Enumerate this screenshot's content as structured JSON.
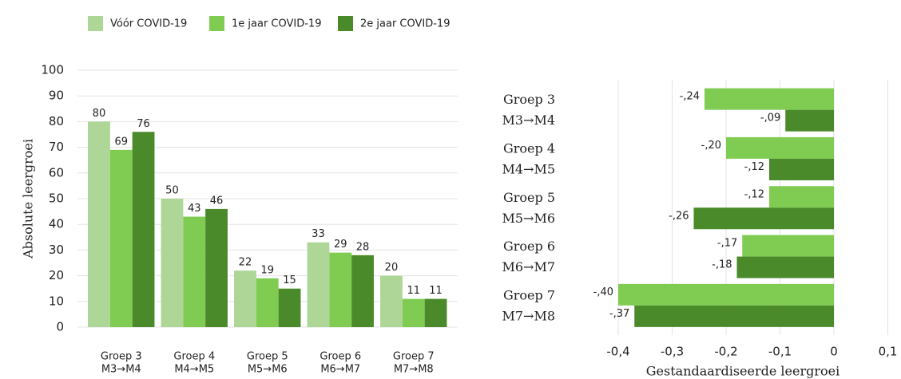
{
  "chart_data": [
    {
      "type": "bar",
      "categories": [
        [
          "Groep 3",
          "M3→M4"
        ],
        [
          "Groep 4",
          "M4→M5"
        ],
        [
          "Groep 5",
          "M5→M6"
        ],
        [
          "Groep 6",
          "M6→M7"
        ],
        [
          "Groep 7",
          "M7→M8"
        ]
      ],
      "series": [
        {
          "name": "Vóór COVID-19",
          "color": "#add697",
          "values": [
            80,
            50,
            22,
            33,
            20
          ]
        },
        {
          "name": "1e jaar COVID-19",
          "color": "#80cc53",
          "values": [
            69,
            43,
            19,
            29,
            11
          ]
        },
        {
          "name": "2e jaar COVID-19",
          "color": "#4a8a2a",
          "values": [
            76,
            46,
            15,
            28,
            11
          ]
        }
      ],
      "y_label": "Absolute leergroei",
      "ylim": [
        0,
        100
      ],
      "yticks": [
        0,
        10,
        20,
        30,
        40,
        50,
        60,
        70,
        80,
        90,
        100
      ],
      "grid": true
    },
    {
      "type": "hbar",
      "categories": [
        [
          "Groep 3",
          "M3→M4"
        ],
        [
          "Groep 4",
          "M4→M5"
        ],
        [
          "Groep 5",
          "M5→M6"
        ],
        [
          "Groep 6",
          "M6→M7"
        ],
        [
          "Groep 7",
          "M7→M8"
        ]
      ],
      "series": [
        {
          "color": "#80cc53",
          "values": [
            -0.24,
            -0.2,
            -0.12,
            -0.17,
            -0.4
          ],
          "value_labels": [
            "-,24",
            "-,20",
            "-,12",
            "-,17",
            "-,40"
          ]
        },
        {
          "color": "#4a8a2a",
          "values": [
            -0.09,
            -0.12,
            -0.26,
            -0.18,
            -0.37
          ],
          "value_labels": [
            "-,09",
            "-,12",
            "-,26",
            "-,18",
            "-,37"
          ]
        }
      ],
      "x_label": "Gestandaardiseerde leergroei",
      "xlim": [
        -0.45,
        0.12
      ],
      "xticks": [
        {
          "value": -0.4,
          "label": "-0,4"
        },
        {
          "value": -0.3,
          "label": "-0,3"
        },
        {
          "value": -0.2,
          "label": "-0,2"
        },
        {
          "value": -0.1,
          "label": "-0,1"
        },
        0,
        {
          "value": 0.1,
          "label": "0,1"
        }
      ],
      "grid": true
    }
  ]
}
